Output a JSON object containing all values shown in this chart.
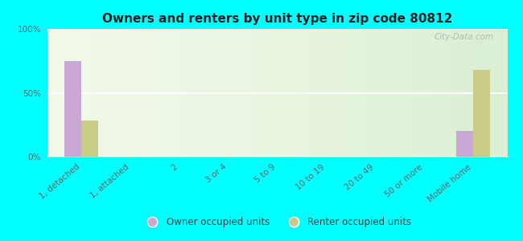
{
  "title": "Owners and renters by unit type in zip code 80812",
  "categories": [
    "1, detached",
    "1, attached",
    "2",
    "3 or 4",
    "5 to 9",
    "10 to 19",
    "20 to 49",
    "50 or more",
    "Mobile home"
  ],
  "owner_values": [
    75,
    0,
    0,
    0,
    0,
    0,
    0,
    0,
    20
  ],
  "renter_values": [
    28,
    0,
    0,
    0,
    0,
    0,
    0,
    0,
    68
  ],
  "owner_color": "#c9a8d4",
  "renter_color": "#c8cc88",
  "background_color": "#00ffff",
  "plot_bg_gradient_top": "#e8f5e0",
  "plot_bg_gradient_bottom": "#f5faf0",
  "ylim": [
    0,
    100
  ],
  "yticks": [
    0,
    50,
    100
  ],
  "ytick_labels": [
    "0%",
    "50%",
    "100%"
  ],
  "bar_width": 0.35,
  "legend_owner": "Owner occupied units",
  "legend_renter": "Renter occupied units",
  "watermark": "City-Data.com",
  "title_fontsize": 11,
  "tick_label_color": "#666666",
  "tick_label_fontsize": 7.5
}
